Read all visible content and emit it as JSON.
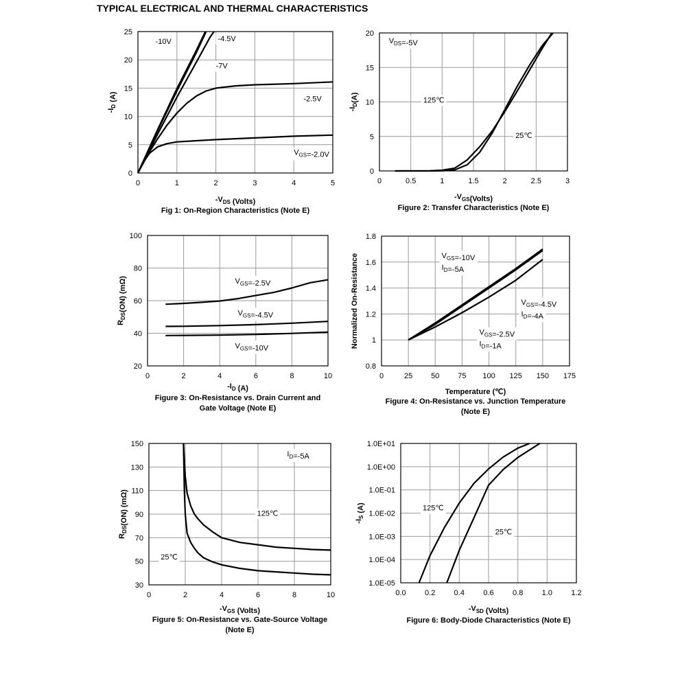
{
  "page_title": "TYPICAL ELECTRICAL AND THERMAL CHARACTERISTICS",
  "chart_data": [
    {
      "id": "fig1",
      "type": "line",
      "caption": "Fig 1: On-Region Characteristics (Note E)",
      "xlabel": "-VDS (Volts)",
      "ylabel": "-ID (A)",
      "xlim": [
        0,
        5
      ],
      "ylim": [
        0,
        25
      ],
      "xticks": [
        0,
        1,
        2,
        3,
        4,
        5
      ],
      "yticks": [
        0,
        5,
        10,
        15,
        20,
        25
      ],
      "grid": true,
      "series": [
        {
          "name": "-10V",
          "x": [
            0,
            0.5,
            1.0,
            1.5,
            1.73
          ],
          "y": [
            0,
            7.6,
            14.9,
            21.7,
            25
          ]
        },
        {
          "name": "-7V",
          "x": [
            0,
            0.5,
            1.0,
            1.5,
            1.75
          ],
          "y": [
            0,
            7.4,
            14.5,
            21.3,
            25
          ]
        },
        {
          "name": "-4.5V",
          "x": [
            0,
            0.5,
            1.0,
            1.5,
            1.85,
            1.95
          ],
          "y": [
            0,
            6.8,
            13.4,
            19.6,
            24,
            25
          ]
        },
        {
          "name": "-2.5V",
          "x": [
            0,
            0.25,
            0.5,
            0.75,
            1.0,
            1.25,
            1.5,
            1.75,
            2.0,
            2.5,
            3.0,
            4.0,
            5.0
          ],
          "y": [
            0,
            3.2,
            6.0,
            8.5,
            10.6,
            12.3,
            13.6,
            14.5,
            15.0,
            15.4,
            15.6,
            15.8,
            16.1
          ]
        },
        {
          "name": "VGS=-2.0V",
          "x": [
            0,
            0.15,
            0.3,
            0.5,
            0.75,
            1.0,
            1.5,
            2.0,
            3.0,
            4.0,
            5.0
          ],
          "y": [
            0,
            2.0,
            3.5,
            4.6,
            5.2,
            5.5,
            5.7,
            5.9,
            6.2,
            6.5,
            6.7
          ]
        }
      ],
      "annotations": [
        {
          "text": "-10V",
          "x": 0.45,
          "y": 22.8
        },
        {
          "text": "-4.5V",
          "x": 2.05,
          "y": 23.3
        },
        {
          "text": "-7V",
          "x": 2.0,
          "y": 18.5
        },
        {
          "text": "-2.5V",
          "x": 4.25,
          "y": 12.7
        },
        {
          "text": "VGS=-2.0V",
          "x": 4.0,
          "y": 3.2
        }
      ]
    },
    {
      "id": "fig2",
      "type": "line",
      "caption": "Figure 2: Transfer Characteristics (Note E)",
      "xlabel": "-VGS(Volts)",
      "ylabel": "-ID(A)",
      "xlim": [
        0,
        3
      ],
      "ylim": [
        0,
        20
      ],
      "xticks": [
        0,
        0.5,
        1,
        1.5,
        2,
        2.5,
        3
      ],
      "xtick_labels": [
        "0",
        "0.5",
        "1",
        "1.5",
        "2",
        "2.5",
        "3"
      ],
      "yticks": [
        0,
        5,
        10,
        15,
        20
      ],
      "grid": true,
      "series": [
        {
          "name": "125℃",
          "x": [
            0.25,
            0.8,
            1.0,
            1.2,
            1.4,
            1.6,
            1.8,
            2.0,
            2.2,
            2.4,
            2.6,
            2.75
          ],
          "y": [
            0,
            0.02,
            0.1,
            0.4,
            1.6,
            3.5,
            5.8,
            8.6,
            11.6,
            14.7,
            17.8,
            20
          ]
        },
        {
          "name": "25℃",
          "x": [
            0.25,
            0.8,
            1.0,
            1.2,
            1.4,
            1.6,
            1.8,
            2.0,
            2.2,
            2.4,
            2.6,
            2.77
          ],
          "y": [
            0,
            0.0,
            0.02,
            0.15,
            0.9,
            2.7,
            5.5,
            8.9,
            12.3,
            15.4,
            18.2,
            20
          ]
        }
      ],
      "annotations": [
        {
          "text": "VDS=-5V",
          "x": 0.15,
          "y": 18.5
        },
        {
          "text": "125℃",
          "x": 0.7,
          "y": 9.9
        },
        {
          "text": "25℃",
          "x": 2.17,
          "y": 4.8
        }
      ]
    },
    {
      "id": "fig3",
      "type": "line",
      "caption": "Figure 3: On-Resistance vs. Drain Current and Gate Voltage (Note E)",
      "caption_lines": [
        "Figure 3: On-Resistance vs. Drain Current and",
        "Gate Voltage (Note E)"
      ],
      "xlabel": "-ID (A)",
      "ylabel": "RDS(ON) (mΩ)",
      "xlim": [
        0,
        10
      ],
      "ylim": [
        20,
        100
      ],
      "xticks": [
        0,
        2,
        4,
        6,
        8,
        10
      ],
      "yticks": [
        20,
        40,
        60,
        80,
        100
      ],
      "grid": true,
      "series": [
        {
          "name": "VGS=-2.5V",
          "x": [
            1,
            2,
            3,
            4,
            5,
            6,
            7,
            8,
            9,
            10
          ],
          "y": [
            57.8,
            58.3,
            59.0,
            59.8,
            61.2,
            63.2,
            65.1,
            67.8,
            71.0,
            72.8
          ]
        },
        {
          "name": "VGS=-4.5V",
          "x": [
            1,
            2,
            4,
            6,
            8,
            10
          ],
          "y": [
            44.2,
            44.3,
            44.7,
            45.3,
            46.2,
            47.3
          ]
        },
        {
          "name": "VGS=-10V",
          "x": [
            1,
            2,
            4,
            6,
            8,
            10
          ],
          "y": [
            38.6,
            38.7,
            38.9,
            39.3,
            39.9,
            40.7
          ]
        }
      ],
      "annotations": [
        {
          "text": "VGS=-2.5V",
          "x": 4.85,
          "y": 70.5
        },
        {
          "text": "VGS=-4.5V",
          "x": 5.0,
          "y": 51.0
        },
        {
          "text": "VGS=-10V",
          "x": 4.85,
          "y": 30.8
        }
      ]
    },
    {
      "id": "fig4",
      "type": "line",
      "caption": "Figure 4: On-Resistance vs. Junction Temperature (Note E)",
      "caption_lines": [
        "Figure 4: On-Resistance vs. Junction Temperature",
        "(Note E)"
      ],
      "xlabel": "Temperature (℃)",
      "ylabel": "Normalized On-Resistance",
      "xlim": [
        0,
        175
      ],
      "ylim": [
        0.8,
        1.8
      ],
      "xticks": [
        0,
        25,
        50,
        75,
        100,
        125,
        150,
        175
      ],
      "yticks": [
        0.8,
        1,
        1.2,
        1.4,
        1.6,
        1.8
      ],
      "ytick_labels": [
        "0.8",
        "1",
        "1.2",
        "1.4",
        "1.6",
        "1.8"
      ],
      "grid": true,
      "series": [
        {
          "name": "VGS=-10V, ID=-5A",
          "x": [
            25,
            50,
            75,
            100,
            125,
            150
          ],
          "y": [
            1.0,
            1.13,
            1.27,
            1.41,
            1.55,
            1.7
          ]
        },
        {
          "name": "VGS=-4.5V, ID=-4A",
          "x": [
            25,
            50,
            75,
            100,
            125,
            150
          ],
          "y": [
            1.0,
            1.12,
            1.26,
            1.4,
            1.54,
            1.69
          ]
        },
        {
          "name": "VGS=-2.5V, ID=-1A",
          "x": [
            25,
            50,
            75,
            100,
            125,
            150
          ],
          "y": [
            1.0,
            1.1,
            1.21,
            1.33,
            1.46,
            1.62
          ]
        }
      ],
      "annotations": [
        {
          "text": "VGS=-10V",
          "x": 56,
          "y": 1.63
        },
        {
          "text": "ID=-5A",
          "x": 56,
          "y": 1.54
        },
        {
          "text": "VGS=-4.5V",
          "x": 130,
          "y": 1.27
        },
        {
          "text": "ID=-4A",
          "x": 130,
          "y": 1.18
        },
        {
          "text": "VGS=-2.5V",
          "x": 91,
          "y": 1.04
        },
        {
          "text": "ID=-1A",
          "x": 91,
          "y": 0.95
        }
      ]
    },
    {
      "id": "fig5",
      "type": "line",
      "caption": "Figure 5: On-Resistance vs. Gate-Source Voltage (Note E)",
      "caption_lines": [
        "Figure 5: On-Resistance vs. Gate-Source Voltage",
        "(Note E)"
      ],
      "xlabel": "-VGS (Volts)",
      "ylabel": "RDS(ON) (mΩ)",
      "xlim": [
        0,
        10
      ],
      "ylim": [
        30,
        150
      ],
      "xticks": [
        0,
        2,
        4,
        6,
        8,
        10
      ],
      "yticks": [
        30,
        50,
        70,
        90,
        110,
        130,
        150
      ],
      "grid": true,
      "series": [
        {
          "name": "125℃",
          "x": [
            1.9,
            1.95,
            2.0,
            2.1,
            2.3,
            2.5,
            2.7,
            3.0,
            3.5,
            4.0,
            5.0,
            6.0,
            7.0,
            8.0,
            9.0,
            10.0
          ],
          "y": [
            150,
            135,
            122,
            108,
            97,
            90,
            86,
            81,
            75,
            70,
            66,
            64,
            62,
            61,
            60,
            59.5
          ]
        },
        {
          "name": "25℃",
          "x": [
            1.9,
            1.95,
            2.0,
            2.1,
            2.3,
            2.5,
            2.7,
            3.0,
            3.5,
            4.0,
            5.0,
            6.0,
            7.0,
            8.0,
            9.0,
            10.0
          ],
          "y": [
            150,
            110,
            90,
            74,
            66,
            61,
            57,
            53,
            49.5,
            47,
            44,
            42,
            41,
            40,
            39,
            38.5
          ]
        }
      ],
      "annotations": [
        {
          "text": "ID=-5A",
          "x": 7.6,
          "y": 139
        },
        {
          "text": "125℃",
          "x": 5.95,
          "y": 88.5
        },
        {
          "text": "25℃",
          "x": 0.65,
          "y": 51.5
        }
      ]
    },
    {
      "id": "fig6",
      "type": "line",
      "caption": "Figure 6: Body-Diode Characteristics (Note E)",
      "xlabel": "-VSD (Volts)",
      "ylabel": "-IS (A)",
      "xlim": [
        0,
        1.2
      ],
      "ylim": [
        1e-05,
        10
      ],
      "yscale": "log",
      "xticks": [
        0,
        0.2,
        0.4,
        0.6,
        0.8,
        1.0,
        1.2
      ],
      "xtick_labels": [
        "0.0",
        "0.2",
        "0.4",
        "0.6",
        "0.8",
        "1.0",
        "1.2"
      ],
      "yticks": [
        1e-05,
        0.0001,
        0.001,
        0.01,
        0.1,
        1,
        10
      ],
      "ytick_labels": [
        "1.0E-05",
        "1.0E-04",
        "1.0E-03",
        "1.0E-02",
        "1.0E-01",
        "1.0E+00",
        "1.0E+01"
      ],
      "grid": true,
      "series": [
        {
          "name": "125℃",
          "x": [
            0.125,
            0.2,
            0.3,
            0.4,
            0.5,
            0.6,
            0.7,
            0.8,
            0.88
          ],
          "y": [
            1e-05,
            0.00015,
            0.0025,
            0.027,
            0.19,
            0.8,
            2.6,
            6.3,
            10
          ]
        },
        {
          "name": "25℃",
          "x": [
            0.315,
            0.4,
            0.5,
            0.6,
            0.7,
            0.8,
            0.9,
            0.95
          ],
          "y": [
            1e-05,
            0.00025,
            0.0063,
            0.16,
            0.75,
            2.5,
            6.3,
            10
          ]
        }
      ],
      "annotations": [
        {
          "text": "125℃",
          "x": 0.15,
          "y": 0.013
        },
        {
          "text": "25℃",
          "x": 0.645,
          "y": 0.0012
        }
      ]
    }
  ]
}
